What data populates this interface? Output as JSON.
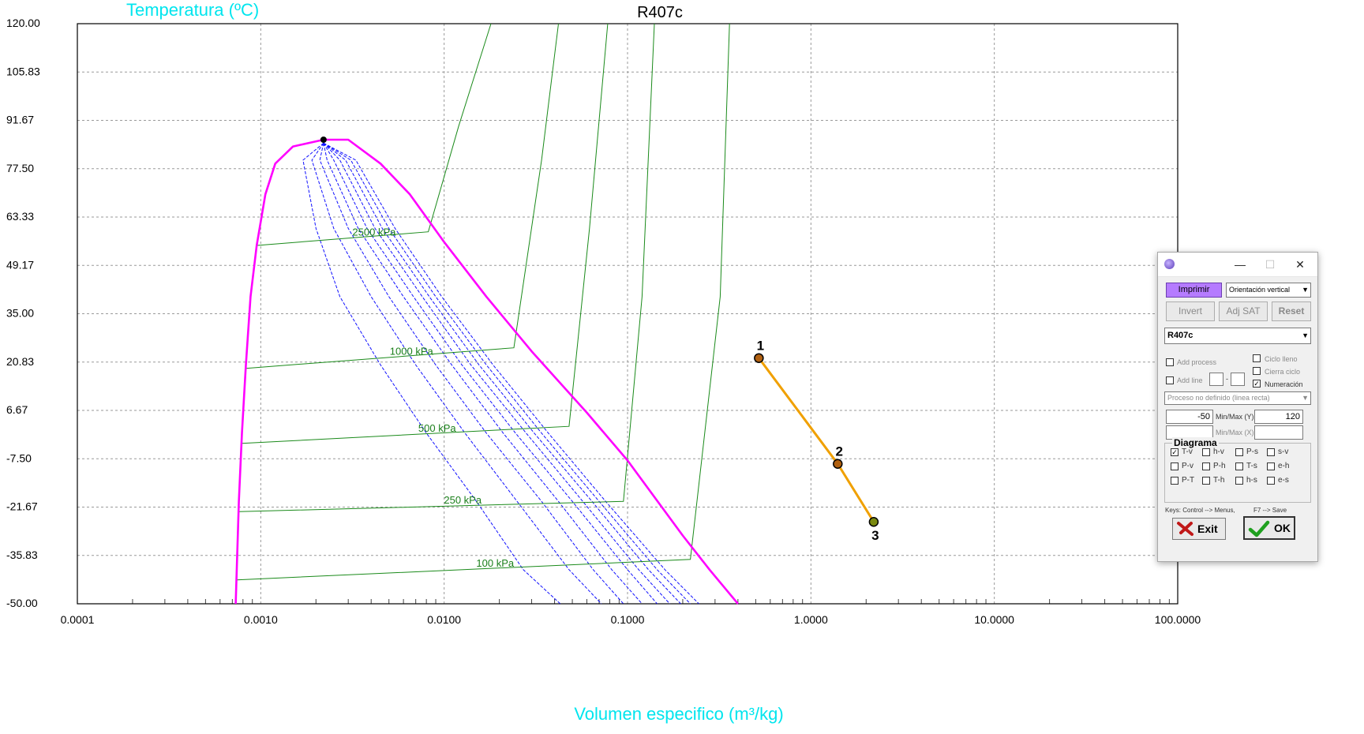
{
  "chart_data": {
    "type": "line",
    "title": "R407c",
    "xlabel": "Volumen especifico (m³/kg)",
    "ylabel": "Temperatura (ºC)",
    "xscale": "log",
    "xlim": [
      0.0001,
      100
    ],
    "ylim": [
      -50,
      120
    ],
    "grid": true,
    "x_tick_labels": [
      "0.0001",
      "0.0010",
      "0.0100",
      "0.1000",
      "1.0000",
      "10.0000",
      "100.0000"
    ],
    "y_tick_labels": [
      "120.00",
      "105.83",
      "91.67",
      "77.50",
      "63.33",
      "49.17",
      "35.00",
      "20.83",
      "6.67",
      "-7.50",
      "-21.67",
      "-35.83",
      "-50.00"
    ],
    "colors": {
      "saturation": "#ff00ff",
      "isobar": "#1a8a1a",
      "quality": "#1010ff",
      "process": "#f0a000"
    },
    "saturation_dome": {
      "liquid": [
        [
          0.00073,
          -50
        ],
        [
          0.00076,
          -20
        ],
        [
          0.00079,
          0
        ],
        [
          0.00083,
          20
        ],
        [
          0.00088,
          40
        ],
        [
          0.00095,
          55
        ],
        [
          0.00106,
          70
        ],
        [
          0.0012,
          79
        ],
        [
          0.0015,
          84
        ],
        [
          0.0022,
          86
        ]
      ],
      "vapor": [
        [
          0.0022,
          86
        ],
        [
          0.003,
          86
        ],
        [
          0.0045,
          79
        ],
        [
          0.0065,
          70
        ],
        [
          0.01,
          56
        ],
        [
          0.017,
          40
        ],
        [
          0.03,
          24
        ],
        [
          0.06,
          6
        ],
        [
          0.1,
          -8
        ],
        [
          0.2,
          -30
        ],
        [
          0.28,
          -40
        ],
        [
          0.4,
          -50
        ]
      ]
    },
    "critical_point": [
      0.0022,
      86
    ],
    "quality_lines": [
      {
        "q": 0.1,
        "points": [
          [
            0.0022,
            85
          ],
          [
            0.0017,
            80
          ],
          [
            0.002,
            60
          ],
          [
            0.0027,
            40
          ],
          [
            0.0045,
            20
          ],
          [
            0.008,
            0
          ],
          [
            0.015,
            -20
          ],
          [
            0.027,
            -40
          ],
          [
            0.043,
            -50
          ]
        ]
      },
      {
        "q": 0.2,
        "points": [
          [
            0.0022,
            85
          ],
          [
            0.0019,
            80
          ],
          [
            0.0025,
            60
          ],
          [
            0.004,
            40
          ],
          [
            0.007,
            20
          ],
          [
            0.013,
            0
          ],
          [
            0.025,
            -20
          ],
          [
            0.048,
            -40
          ],
          [
            0.072,
            -50
          ]
        ]
      },
      {
        "q": 0.3,
        "points": [
          [
            0.0022,
            85
          ],
          [
            0.0021,
            80
          ],
          [
            0.003,
            60
          ],
          [
            0.005,
            40
          ],
          [
            0.009,
            20
          ],
          [
            0.017,
            0
          ],
          [
            0.034,
            -20
          ],
          [
            0.065,
            -40
          ],
          [
            0.095,
            -50
          ]
        ]
      },
      {
        "q": 0.4,
        "points": [
          [
            0.0022,
            85
          ],
          [
            0.0023,
            80
          ],
          [
            0.0034,
            60
          ],
          [
            0.006,
            40
          ],
          [
            0.011,
            20
          ],
          [
            0.021,
            0
          ],
          [
            0.042,
            -20
          ],
          [
            0.082,
            -40
          ],
          [
            0.12,
            -50
          ]
        ]
      },
      {
        "q": 0.5,
        "points": [
          [
            0.0022,
            85
          ],
          [
            0.0025,
            80
          ],
          [
            0.0038,
            60
          ],
          [
            0.0068,
            40
          ],
          [
            0.0125,
            20
          ],
          [
            0.0245,
            0
          ],
          [
            0.05,
            -20
          ],
          [
            0.1,
            -40
          ],
          [
            0.145,
            -50
          ]
        ]
      },
      {
        "q": 0.6,
        "points": [
          [
            0.0022,
            85
          ],
          [
            0.0027,
            80
          ],
          [
            0.0042,
            60
          ],
          [
            0.0076,
            40
          ],
          [
            0.014,
            20
          ],
          [
            0.028,
            0
          ],
          [
            0.057,
            -20
          ],
          [
            0.115,
            -40
          ],
          [
            0.17,
            -50
          ]
        ]
      },
      {
        "q": 0.7,
        "points": [
          [
            0.0022,
            85
          ],
          [
            0.0029,
            80
          ],
          [
            0.0046,
            60
          ],
          [
            0.0083,
            40
          ],
          [
            0.0155,
            20
          ],
          [
            0.031,
            0
          ],
          [
            0.064,
            -20
          ],
          [
            0.13,
            -40
          ],
          [
            0.195,
            -50
          ]
        ]
      },
      {
        "q": 0.8,
        "points": [
          [
            0.0022,
            85
          ],
          [
            0.0031,
            80
          ],
          [
            0.005,
            60
          ],
          [
            0.009,
            40
          ],
          [
            0.017,
            20
          ],
          [
            0.034,
            0
          ],
          [
            0.07,
            -20
          ],
          [
            0.145,
            -40
          ],
          [
            0.22,
            -50
          ]
        ]
      },
      {
        "q": 0.9,
        "points": [
          [
            0.0022,
            85
          ],
          [
            0.0033,
            80
          ],
          [
            0.0054,
            60
          ],
          [
            0.0097,
            40
          ],
          [
            0.0185,
            20
          ],
          [
            0.037,
            0
          ],
          [
            0.076,
            -20
          ],
          [
            0.16,
            -40
          ],
          [
            0.245,
            -50
          ]
        ]
      }
    ],
    "isobars": [
      {
        "label": "2500 kPa",
        "liquid": [
          [
            0.00095,
            55
          ],
          [
            0.0082,
            59
          ]
        ],
        "vapor_points": [
          [
            0.0082,
            59
          ],
          [
            0.012,
            90
          ],
          [
            0.018,
            120
          ]
        ]
      },
      {
        "label": "1000 kPa",
        "liquid": [
          [
            0.00083,
            19
          ],
          [
            0.024,
            25
          ]
        ],
        "vapor_points": [
          [
            0.024,
            25
          ],
          [
            0.034,
            80
          ],
          [
            0.042,
            120
          ]
        ]
      },
      {
        "label": "500 kPa",
        "liquid": [
          [
            0.00079,
            -3
          ],
          [
            0.048,
            2
          ]
        ],
        "vapor_points": [
          [
            0.048,
            2
          ],
          [
            0.062,
            60
          ],
          [
            0.078,
            120
          ]
        ]
      },
      {
        "label": "250 kPa",
        "liquid": [
          [
            0.00076,
            -23
          ],
          [
            0.095,
            -20
          ]
        ],
        "vapor_points": [
          [
            0.095,
            -20
          ],
          [
            0.12,
            40
          ],
          [
            0.14,
            120
          ]
        ]
      },
      {
        "label": "100 kPa",
        "liquid": [
          [
            0.00074,
            -43
          ],
          [
            0.22,
            -37
          ]
        ],
        "vapor_points": [
          [
            0.22,
            -37
          ],
          [
            0.32,
            40
          ],
          [
            0.36,
            120
          ]
        ]
      }
    ],
    "process_points": [
      {
        "label": "1",
        "v": 0.52,
        "T": 22
      },
      {
        "label": "2",
        "v": 1.4,
        "T": -9
      },
      {
        "label": "3",
        "v": 2.2,
        "T": -26
      }
    ]
  },
  "panel": {
    "print_label": "Imprimir",
    "orientation_value": "Orientación vertical",
    "invert_label": "Invert",
    "adjsat_label": "Adj SAT",
    "reset_label": "Reset",
    "substance_value": "R407c",
    "add_process_label": "Add process",
    "ciclo_lleno_label": "Ciclo lleno",
    "cierra_ciclo_label": "Cierra ciclo",
    "add_line_label": "Add line",
    "numeracion_label": "Numeración",
    "process_type_value": "Proceso no definido (linea recta)",
    "min_y_value": "-50",
    "minmax_y_label": "Min/Max (Y)",
    "max_y_value": "120",
    "minmax_x_label": "Min/Max (X)",
    "diagram_title": "Diagrama",
    "diagrams": [
      {
        "label": "T-v",
        "checked": true
      },
      {
        "label": "h-v",
        "checked": false
      },
      {
        "label": "P-s",
        "checked": false
      },
      {
        "label": "s-v",
        "checked": false
      },
      {
        "label": "P-v",
        "checked": false
      },
      {
        "label": "P-h",
        "checked": false
      },
      {
        "label": "T-s",
        "checked": false
      },
      {
        "label": "e-h",
        "checked": false
      },
      {
        "label": "P-T",
        "checked": false
      },
      {
        "label": "T-h",
        "checked": false
      },
      {
        "label": "h-s",
        "checked": false
      },
      {
        "label": "e-s",
        "checked": false
      }
    ],
    "keys_text": "Keys: Control --> Menus,",
    "keys_text2": "F7 --> Save",
    "exit_label": "Exit",
    "ok_label": "OK"
  }
}
